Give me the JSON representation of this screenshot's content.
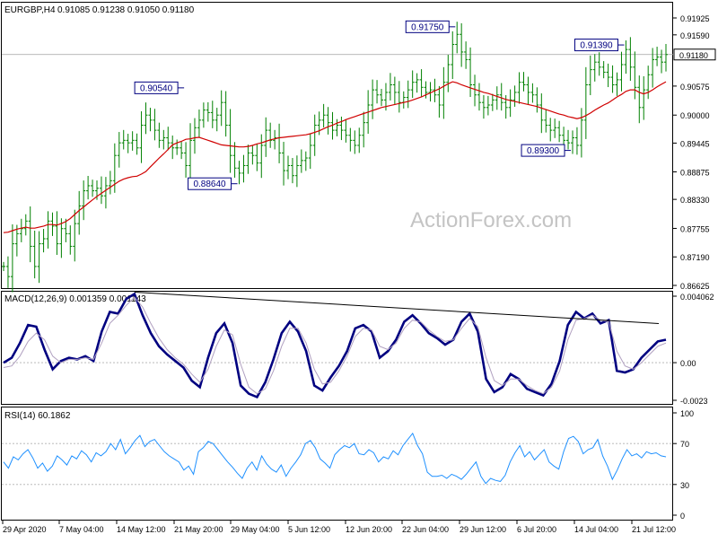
{
  "header": {
    "symbol": "EURGBP,H4",
    "ohlc": "0.91085 0.91238 0.91050 0.91180"
  },
  "watermark": "ActionForex.com",
  "colors": {
    "bars": "#008000",
    "ma": "#d00000",
    "macd_main": "#000080",
    "macd_signal": "#b0a0c0",
    "rsi": "#1e90ff",
    "trendline": "#000000",
    "frame": "#000000",
    "label_border": "#000080"
  },
  "chart_data": [
    {
      "type": "line",
      "panel": "price",
      "title": "EURGBP,H4",
      "ylim": [
        0.86625,
        0.91925
      ],
      "y_ticks": [
        "0.91925",
        "0.91590",
        "0.91180",
        "0.90575",
        "0.90000",
        "0.89445",
        "0.88875",
        "0.88330",
        "0.87755",
        "0.87190",
        "0.86625"
      ],
      "current_price_label": "0.91180",
      "x_ticks": [
        "29 Apr 2020",
        "7 May 04:00",
        "14 May 12:00",
        "21 May 20:00",
        "29 May 04:00",
        "5 Jun 12:00",
        "12 Jun 20:00",
        "22 Jun 04:00",
        "29 Jun 12:00",
        "6 Jul 20:00",
        "14 Jul 04:00",
        "21 Jul 12:00"
      ],
      "series": [
        {
          "values": [
            0.87,
            0.868,
            0.8745,
            0.8765,
            0.8775,
            0.879,
            0.874,
            0.87,
            0.8745,
            0.8755,
            0.879,
            0.878,
            0.8745,
            0.8775,
            0.8765,
            0.874,
            0.8785,
            0.882,
            0.885,
            0.886,
            0.885,
            0.8855,
            0.884,
            0.886,
            0.887,
            0.892,
            0.8945,
            0.895,
            0.8945,
            0.895,
            0.8935,
            0.898,
            0.9,
            0.899,
            0.897,
            0.895,
            0.8955,
            0.8945,
            0.8935,
            0.8935,
            0.8925,
            0.89,
            0.895,
            0.8975,
            0.899,
            0.901,
            0.9005,
            0.899,
            0.9,
            0.9025,
            0.898,
            0.892,
            0.8895,
            0.8885,
            0.89,
            0.8925,
            0.892,
            0.8905,
            0.894,
            0.897,
            0.895,
            0.8955,
            0.8925,
            0.889,
            0.89,
            0.888,
            0.89,
            0.891,
            0.8915,
            0.894,
            0.898,
            0.899,
            0.9,
            0.8985,
            0.897,
            0.898,
            0.897,
            0.896,
            0.895,
            0.894,
            0.896,
            0.8985,
            0.902,
            0.905,
            0.904,
            0.903,
            0.9045,
            0.906,
            0.9045,
            0.9025,
            0.9035,
            0.905,
            0.9065,
            0.907,
            0.9055,
            0.9045,
            0.905,
            0.904,
            0.902,
            0.9065,
            0.91,
            0.914,
            0.916,
            0.9125,
            0.911,
            0.906,
            0.904,
            0.9025,
            0.9015,
            0.902,
            0.903,
            0.904,
            0.9025,
            0.9015,
            0.903,
            0.9045,
            0.9065,
            0.906,
            0.9045,
            0.904,
            0.902,
            0.899,
            0.898,
            0.897,
            0.8975,
            0.896,
            0.895,
            0.8945,
            0.8955,
            0.894,
            0.899,
            0.906,
            0.909,
            0.9105,
            0.9095,
            0.9085,
            0.9075,
            0.906,
            0.907,
            0.91,
            0.913,
            0.9095,
            0.9055,
            0.9015,
            0.905,
            0.908,
            0.911,
            0.9115,
            0.9105,
            0.912
          ]
        },
        {
          "values": [
            0.8767,
            0.8768,
            0.8771,
            0.8774,
            0.8776,
            0.8778,
            0.8776,
            0.8776,
            0.8778,
            0.878,
            0.8783,
            0.8783,
            0.8782,
            0.8785,
            0.8789,
            0.8795,
            0.8803,
            0.8811,
            0.8818,
            0.8825,
            0.8832,
            0.8839,
            0.8845,
            0.8851,
            0.8857,
            0.8863,
            0.8869,
            0.8873,
            0.8876,
            0.8878,
            0.8879,
            0.8883,
            0.8888,
            0.8897,
            0.8906,
            0.8915,
            0.8923,
            0.8932,
            0.8941,
            0.8945,
            0.8948,
            0.8952,
            0.8953,
            0.8955,
            0.8956,
            0.8953,
            0.895,
            0.8947,
            0.8944,
            0.8941,
            0.894,
            0.8939,
            0.8938,
            0.8937,
            0.8937,
            0.8938,
            0.894,
            0.8943,
            0.8945,
            0.8948,
            0.8951,
            0.8953,
            0.8955,
            0.8956,
            0.8957,
            0.8958,
            0.8959,
            0.896,
            0.8961,
            0.8963,
            0.8966,
            0.8969,
            0.8973,
            0.8977,
            0.898,
            0.8984,
            0.8987,
            0.8991,
            0.8994,
            0.8997,
            0.9,
            0.9003,
            0.9006,
            0.9009,
            0.9012,
            0.9015,
            0.9017,
            0.9019,
            0.9021,
            0.9023,
            0.9025,
            0.9027,
            0.903,
            0.9033,
            0.9036,
            0.904,
            0.9044,
            0.9048,
            0.9052,
            0.9057,
            0.9062,
            0.9066,
            0.9064,
            0.906,
            0.9057,
            0.9054,
            0.9051,
            0.9048,
            0.9045,
            0.9043,
            0.904,
            0.9037,
            0.9034,
            0.9031,
            0.9029,
            0.9027,
            0.9025,
            0.9023,
            0.9021,
            0.9019,
            0.9017,
            0.9014,
            0.9011,
            0.9008,
            0.9005,
            0.9002,
            0.9,
            0.8997,
            0.8995,
            0.8993,
            0.8995,
            0.8999,
            0.9004,
            0.901,
            0.9015,
            0.902,
            0.9024,
            0.903,
            0.9036,
            0.9041,
            0.9047,
            0.905,
            0.905,
            0.9045,
            0.9042,
            0.9045,
            0.905,
            0.9056,
            0.9061,
            0.9066
          ]
        }
      ],
      "annotations": [
        {
          "text": "0.90540",
          "value": 0.9054
        },
        {
          "text": "0.88640",
          "value": 0.8864
        },
        {
          "text": "0.91750",
          "value": 0.9175
        },
        {
          "text": "0.89300",
          "value": 0.893
        },
        {
          "text": "0.91390",
          "value": 0.9139
        }
      ]
    },
    {
      "type": "line",
      "panel": "macd",
      "title": "MACD(12,26,9) 0.001359 0.001143",
      "ylim": [
        -0.0023,
        0.004062
      ],
      "y_ticks": [
        "0.004062",
        "0.00",
        "-0.0023"
      ],
      "series": [
        {
          "values": [
            0.0,
            0.0003,
            0.0012,
            0.0023,
            0.0022,
            0.0008,
            -0.0004,
            0.0001,
            0.0003,
            0.0002,
            0.0004,
            0.0001,
            0.0019,
            0.0031,
            0.003,
            0.0039,
            0.0042,
            0.0029,
            0.0018,
            0.001,
            0.0005,
            0.0001,
            -0.0003,
            -0.0011,
            -0.0015,
            0.0003,
            0.0018,
            0.0024,
            0.0012,
            -0.0014,
            -0.0019,
            -0.0021,
            -0.0012,
            0.0002,
            0.0018,
            0.0025,
            0.0019,
            0.0007,
            -0.0014,
            -0.0017,
            -0.0009,
            -0.0002,
            0.0007,
            0.0021,
            0.0023,
            0.0019,
            0.0003,
            0.0007,
            0.0014,
            0.0025,
            0.0029,
            0.0024,
            0.0018,
            0.0015,
            0.0011,
            0.0014,
            0.0025,
            0.003,
            0.0019,
            -0.001,
            -0.0018,
            -0.0015,
            -0.0007,
            -0.001,
            -0.0016,
            -0.0018,
            -0.002,
            -0.0013,
            0.0001,
            0.0023,
            0.0031,
            0.0027,
            0.003,
            0.0024,
            0.0026,
            -0.0005,
            -0.0006,
            -0.0004,
            0.0003,
            0.0008,
            0.0013,
            0.0014
          ],
          "role": "main"
        },
        {
          "values": [
            -0.0003,
            -0.0002,
            0.0004,
            0.0013,
            0.0018,
            0.0014,
            0.0004,
            0.0,
            0.0002,
            0.0002,
            0.0003,
            0.0002,
            0.0012,
            0.0024,
            0.0029,
            0.0035,
            0.004,
            0.0034,
            0.0024,
            0.0015,
            0.0008,
            0.0003,
            -0.0001,
            -0.0007,
            -0.0012,
            -0.0004,
            0.001,
            0.002,
            0.0017,
            -0.0001,
            -0.0015,
            -0.0019,
            -0.0016,
            -0.0005,
            0.001,
            0.0021,
            0.0021,
            0.0012,
            -0.0004,
            -0.0013,
            -0.0012,
            -0.0005,
            0.0004,
            0.0016,
            0.0021,
            0.002,
            0.001,
            0.0008,
            0.0012,
            0.0021,
            0.0026,
            0.0025,
            0.002,
            0.0016,
            0.0013,
            0.0014,
            0.0021,
            0.0027,
            0.0022,
            0.0003,
            -0.0011,
            -0.0014,
            -0.001,
            -0.001,
            -0.0014,
            -0.0017,
            -0.0019,
            -0.0015,
            -0.0005,
            0.0014,
            0.0026,
            0.0027,
            0.0029,
            0.0026,
            0.0025,
            0.0007,
            -0.0002,
            -0.0004,
            0.0,
            0.0005,
            0.001,
            0.0012
          ],
          "role": "signal"
        }
      ]
    },
    {
      "type": "line",
      "panel": "rsi",
      "title": "RSI(14) 60.1862",
      "ylim": [
        0,
        100
      ],
      "y_ticks": [
        "100",
        "70",
        "30",
        "0"
      ],
      "levels": [
        70,
        30
      ],
      "series": [
        {
          "values": [
            52,
            46,
            57,
            54,
            60,
            64,
            56,
            46,
            51,
            43,
            48,
            58,
            54,
            49,
            58,
            55,
            63,
            59,
            52,
            61,
            58,
            62,
            70,
            64,
            74,
            60,
            66,
            73,
            78,
            67,
            72,
            74,
            68,
            62,
            58,
            55,
            52,
            44,
            48,
            40,
            62,
            66,
            72,
            70,
            64,
            58,
            52,
            47,
            41,
            36,
            46,
            52,
            44,
            58,
            50,
            45,
            42,
            49,
            38,
            46,
            52,
            59,
            70,
            73,
            66,
            55,
            51,
            46,
            59,
            64,
            68,
            66,
            70,
            60,
            59,
            64,
            61,
            52,
            57,
            55,
            63,
            59,
            68,
            74,
            80,
            68,
            60,
            42,
            38,
            38,
            39,
            36,
            40,
            38,
            35,
            40,
            46,
            52,
            38,
            31,
            36,
            34,
            33,
            39,
            52,
            61,
            68,
            57,
            62,
            54,
            59,
            64,
            52,
            48,
            45,
            62,
            75,
            77,
            72,
            60,
            64,
            66,
            74,
            58,
            48,
            35,
            44,
            55,
            64,
            58,
            60,
            56,
            62,
            60,
            61,
            58,
            57
          ]
        }
      ]
    }
  ]
}
